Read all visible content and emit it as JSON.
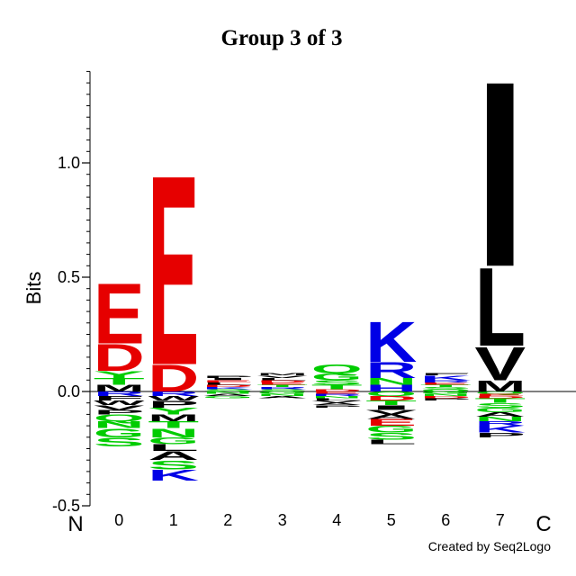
{
  "chart_data": {
    "type": "sequence-logo",
    "title": "Group 3 of 3",
    "ylabel": "Bits",
    "ylim": [
      -0.5,
      1.4
    ],
    "yticks": [
      -0.5,
      0.0,
      0.5,
      1.0
    ],
    "ytick_labels": [
      "-0.5",
      "0.0",
      "0.5",
      "1.0"
    ],
    "positions": [
      "0",
      "1",
      "2",
      "3",
      "4",
      "5",
      "6",
      "7"
    ],
    "n_label": "N",
    "c_label": "C",
    "credit": "Created by Seq2Logo",
    "colors": {
      "acidic": "#e60000",
      "basic": "#0000e6",
      "polar": "#00cc00",
      "hydrophobic": "#000000"
    },
    "columns": [
      {
        "pos": "0",
        "above": [
          {
            "letter": "M",
            "bits": 0.03
          },
          {
            "letter": "T",
            "bits": 0.03
          },
          {
            "letter": "Y",
            "bits": 0.03
          },
          {
            "letter": "D",
            "bits": 0.12
          },
          {
            "letter": "E",
            "bits": 0.27
          }
        ],
        "below": [
          {
            "letter": "R",
            "bits": 0.02
          },
          {
            "letter": "F",
            "bits": 0.02
          },
          {
            "letter": "W",
            "bits": 0.02
          },
          {
            "letter": "V",
            "bits": 0.02
          },
          {
            "letter": "P",
            "bits": 0.02
          },
          {
            "letter": "Q",
            "bits": 0.03
          },
          {
            "letter": "N",
            "bits": 0.03
          },
          {
            "letter": "G",
            "bits": 0.04
          },
          {
            "letter": "S",
            "bits": 0.04
          }
        ]
      },
      {
        "pos": "1",
        "above": [
          {
            "letter": "D",
            "bits": 0.12
          },
          {
            "letter": "E",
            "bits": 0.85
          }
        ],
        "below": [
          {
            "letter": "R",
            "bits": 0.02
          },
          {
            "letter": "W",
            "bits": 0.02
          },
          {
            "letter": "P",
            "bits": 0.03
          },
          {
            "letter": "Y",
            "bits": 0.03
          },
          {
            "letter": "M",
            "bits": 0.03
          },
          {
            "letter": "T",
            "bits": 0.03
          },
          {
            "letter": "N",
            "bits": 0.04
          },
          {
            "letter": "G",
            "bits": 0.03
          },
          {
            "letter": "L",
            "bits": 0.03
          },
          {
            "letter": "A",
            "bits": 0.04
          },
          {
            "letter": "S",
            "bits": 0.04
          },
          {
            "letter": "K",
            "bits": 0.05
          }
        ]
      },
      {
        "pos": "2",
        "above": [
          {
            "letter": "S",
            "bits": 0.01
          },
          {
            "letter": "K",
            "bits": 0.01
          },
          {
            "letter": "D",
            "bits": 0.01
          },
          {
            "letter": "L",
            "bits": 0.01
          },
          {
            "letter": "E",
            "bits": 0.01
          },
          {
            "letter": "I",
            "bits": 0.01
          },
          {
            "letter": "P",
            "bits": 0.01
          }
        ],
        "below": [
          {
            "letter": "N",
            "bits": 0.01
          },
          {
            "letter": "A",
            "bits": 0.01
          },
          {
            "letter": "G",
            "bits": 0.01
          }
        ]
      },
      {
        "pos": "3",
        "above": [
          {
            "letter": "S",
            "bits": 0.01
          },
          {
            "letter": "R",
            "bits": 0.01
          },
          {
            "letter": "T",
            "bits": 0.01
          },
          {
            "letter": "E",
            "bits": 0.01
          },
          {
            "letter": "D",
            "bits": 0.01
          },
          {
            "letter": "L",
            "bits": 0.01
          },
          {
            "letter": "V",
            "bits": 0.01
          },
          {
            "letter": "M",
            "bits": 0.01
          }
        ],
        "below": [
          {
            "letter": "G",
            "bits": 0.01
          },
          {
            "letter": "N",
            "bits": 0.01
          },
          {
            "letter": "A",
            "bits": 0.01
          }
        ]
      },
      {
        "pos": "4",
        "above": [
          {
            "letter": "D",
            "bits": 0.01
          },
          {
            "letter": "T",
            "bits": 0.02
          },
          {
            "letter": "S",
            "bits": 0.02
          },
          {
            "letter": "G",
            "bits": 0.03
          },
          {
            "letter": "Q",
            "bits": 0.04
          }
        ],
        "below": [
          {
            "letter": "E",
            "bits": 0.01
          },
          {
            "letter": "R",
            "bits": 0.01
          },
          {
            "letter": "N",
            "bits": 0.01
          },
          {
            "letter": "L",
            "bits": 0.01
          },
          {
            "letter": "V",
            "bits": 0.01
          },
          {
            "letter": "A",
            "bits": 0.01
          },
          {
            "letter": "P",
            "bits": 0.01
          }
        ]
      },
      {
        "pos": "5",
        "above": [
          {
            "letter": "H",
            "bits": 0.03
          },
          {
            "letter": "N",
            "bits": 0.03
          },
          {
            "letter": "R",
            "bits": 0.07
          },
          {
            "letter": "K",
            "bits": 0.18
          }
        ],
        "below": [
          {
            "letter": "Q",
            "bits": 0.02
          },
          {
            "letter": "D",
            "bits": 0.02
          },
          {
            "letter": "T",
            "bits": 0.02
          },
          {
            "letter": "I",
            "bits": 0.02
          },
          {
            "letter": "V",
            "bits": 0.02
          },
          {
            "letter": "A",
            "bits": 0.02
          },
          {
            "letter": "E",
            "bits": 0.03
          },
          {
            "letter": "G",
            "bits": 0.03
          },
          {
            "letter": "S",
            "bits": 0.03
          },
          {
            "letter": "L",
            "bits": 0.02
          }
        ]
      },
      {
        "pos": "6",
        "above": [
          {
            "letter": "Q",
            "bits": 0.01
          },
          {
            "letter": "S",
            "bits": 0.01
          },
          {
            "letter": "T",
            "bits": 0.01
          },
          {
            "letter": "E",
            "bits": 0.01
          },
          {
            "letter": "R",
            "bits": 0.01
          },
          {
            "letter": "K",
            "bits": 0.02
          },
          {
            "letter": "F",
            "bits": 0.01
          }
        ],
        "below": [
          {
            "letter": "G",
            "bits": 0.01
          },
          {
            "letter": "N",
            "bits": 0.01
          },
          {
            "letter": "D",
            "bits": 0.01
          },
          {
            "letter": "P",
            "bits": 0.01
          }
        ]
      },
      {
        "pos": "7",
        "above": [
          {
            "letter": "M",
            "bits": 0.05
          },
          {
            "letter": "V",
            "bits": 0.15
          },
          {
            "letter": "L",
            "bits": 0.35
          },
          {
            "letter": "I",
            "bits": 0.83
          }
        ],
        "below": [
          {
            "letter": "Q",
            "bits": 0.01
          },
          {
            "letter": "E",
            "bits": 0.01
          },
          {
            "letter": "D",
            "bits": 0.01
          },
          {
            "letter": "T",
            "bits": 0.02
          },
          {
            "letter": "S",
            "bits": 0.02
          },
          {
            "letter": "G",
            "bits": 0.02
          },
          {
            "letter": "A",
            "bits": 0.02
          },
          {
            "letter": "N",
            "bits": 0.02
          },
          {
            "letter": "R",
            "bits": 0.02
          },
          {
            "letter": "K",
            "bits": 0.03
          },
          {
            "letter": "P",
            "bits": 0.02
          }
        ]
      }
    ]
  }
}
